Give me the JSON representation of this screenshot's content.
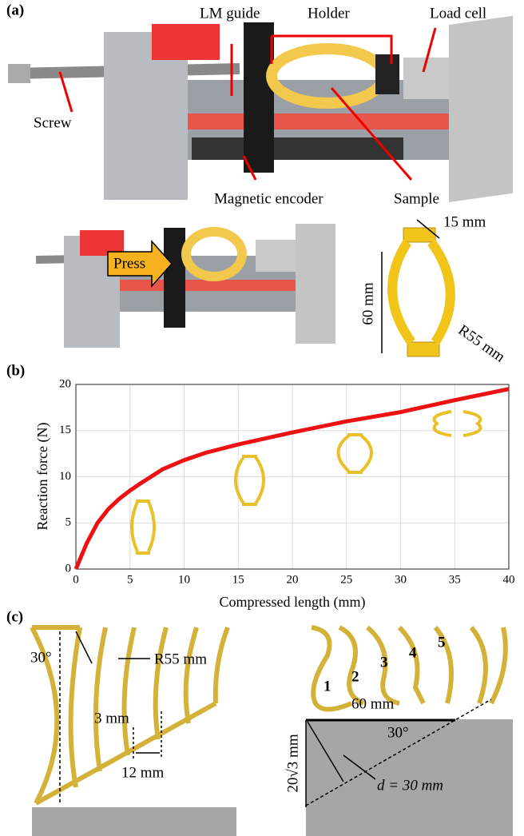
{
  "panels": [
    "(a)",
    "(b)",
    "(c)"
  ],
  "photo_labels": [
    "LM guide",
    "Holder",
    "Load cell",
    "Screw",
    "Magnetic encoder",
    "Sample",
    "Press",
    "15 mm",
    "60 mm",
    "R55 mm"
  ],
  "chart_data": {
    "type": "line",
    "x": [
      0,
      1,
      2,
      3,
      4,
      5,
      6,
      8,
      10,
      12,
      15,
      20,
      25,
      30,
      35,
      40
    ],
    "values": [
      0,
      2.8,
      5,
      6.5,
      7.6,
      8.5,
      9.3,
      10.8,
      11.8,
      12.6,
      13.5,
      14.8,
      16,
      17,
      18.3,
      19.5
    ],
    "color": "#ee1111",
    "xlabel": "Compressed length (mm)",
    "ylabel": "Reaction force (N)",
    "xlim": [
      0,
      40
    ],
    "xticks": [
      0,
      5,
      10,
      15,
      20,
      25,
      30,
      35,
      40
    ],
    "ylim": [
      0,
      20
    ],
    "yticks": [
      0,
      5,
      10,
      15,
      20
    ],
    "grid": true
  },
  "diagram_labels": [
    "30°",
    "R55 mm",
    "3 mm",
    "12 mm",
    "1",
    "2",
    "3",
    "4",
    "5",
    "60 mm",
    "30°",
    "20√3 mm",
    "d = 30 mm"
  ]
}
